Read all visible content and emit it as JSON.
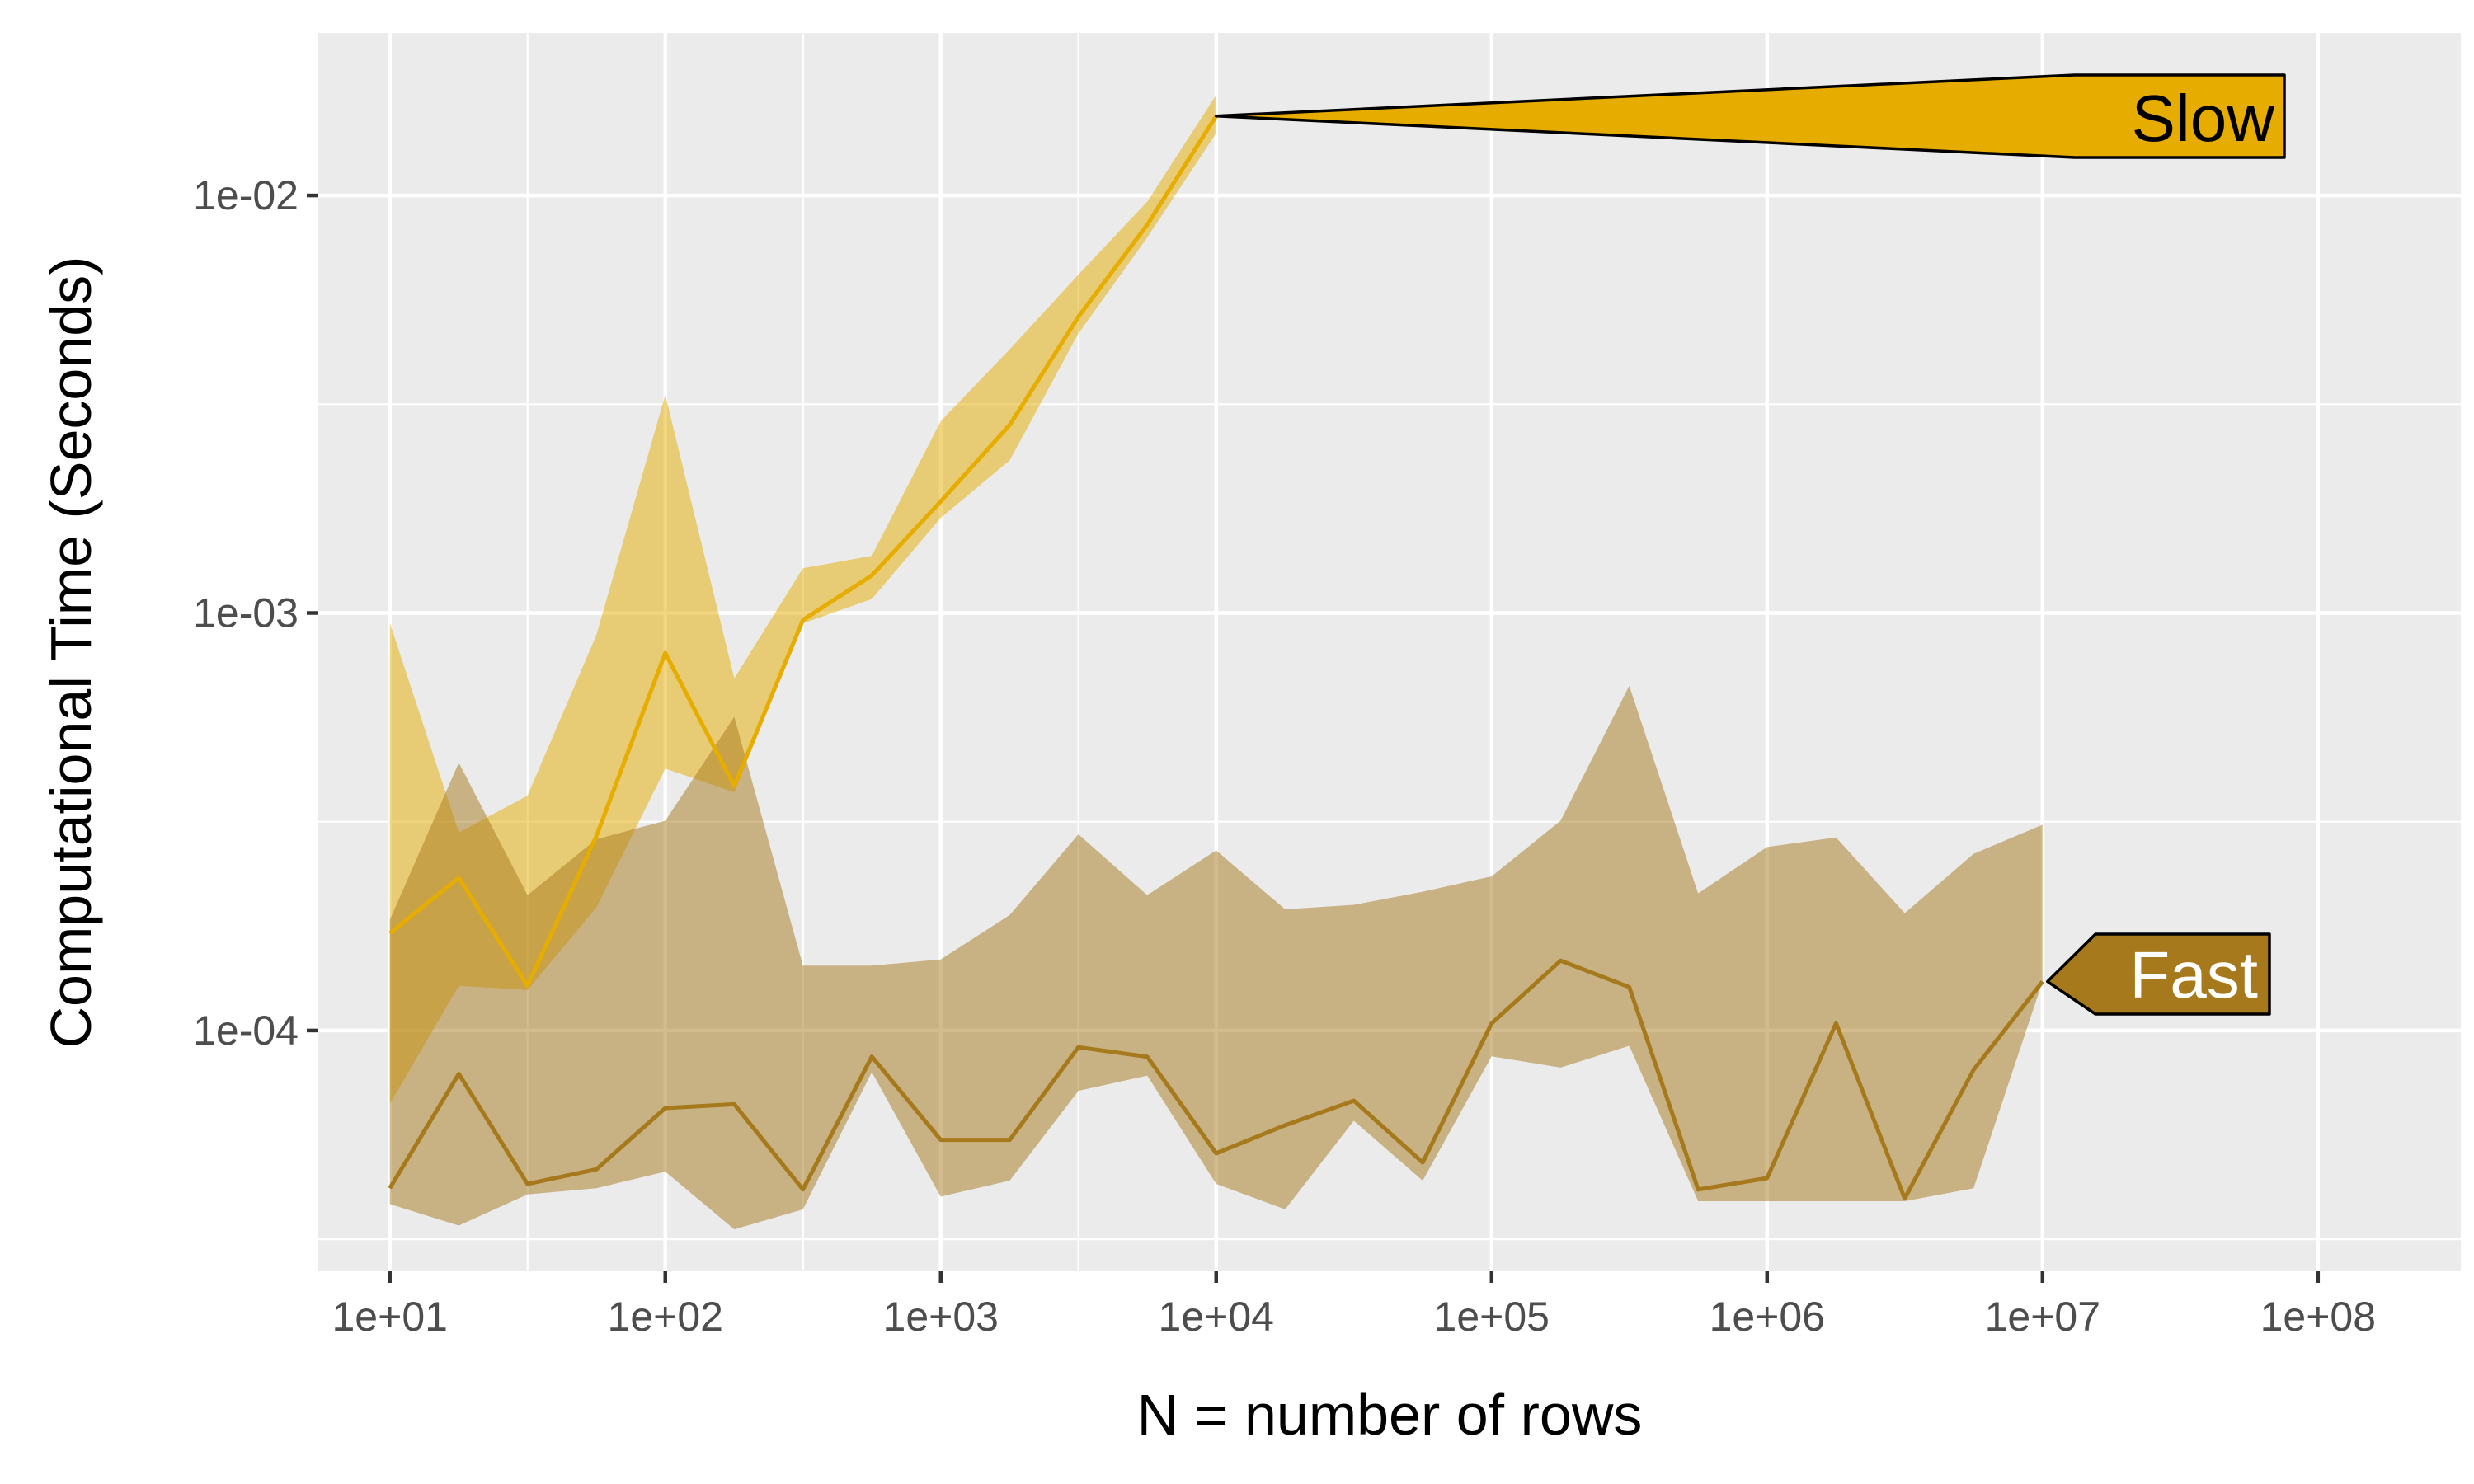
{
  "chart_data": {
    "type": "line",
    "xlabel": "N = number of rows",
    "ylabel": "Computational Time (Seconds)",
    "x_scale": "log10",
    "y_scale": "log10",
    "xlim": [
      5.5,
      330000000
    ],
    "ylim": [
      2.65e-05,
      0.0245
    ],
    "x_ticks": [
      10,
      100,
      1000,
      10000,
      100000,
      1000000,
      10000000,
      100000000
    ],
    "x_tick_labels": [
      "1e+01",
      "1e+02",
      "1e+03",
      "1e+04",
      "1e+05",
      "1e+06",
      "1e+07",
      "1e+08"
    ],
    "y_ticks": [
      0.0001,
      0.001,
      0.01
    ],
    "y_tick_labels": [
      "1e-04",
      "1e-03",
      "1e-02"
    ],
    "grid": true,
    "background": "#ebebeb",
    "series": [
      {
        "name": "Slow",
        "line_color": "#e6ac00",
        "band_color": "#e6ac00",
        "label_fill": "#e6ac00",
        "label_text_color": "#000000",
        "x": [
          10,
          17.8,
          31.6,
          56.2,
          100,
          178,
          316,
          562,
          1000,
          1780,
          3160,
          5620,
          10000
        ],
        "y": [
          0.000171,
          0.000232,
          0.000128,
          0.000292,
          0.000802,
          0.000385,
          0.000962,
          0.00123,
          0.00185,
          0.00282,
          0.00512,
          0.00851,
          0.0155
        ],
        "ymin": [
          6.67e-05,
          0.000128,
          0.000125,
          0.000197,
          0.000424,
          0.000372,
          0.000944,
          0.00108,
          0.00169,
          0.00232,
          0.00467,
          0.00793,
          0.0141
        ],
        "ymax": [
          0.000946,
          0.000298,
          0.000365,
          0.000885,
          0.00333,
          0.000697,
          0.00128,
          0.00137,
          0.00288,
          0.00428,
          0.00646,
          0.00966,
          0.0174
        ]
      },
      {
        "name": "Fast",
        "line_color": "#a67a1c",
        "band_color": "#a67a1c",
        "label_fill": "#a67a1c",
        "label_text_color": "#ffffff",
        "x": [
          10,
          17.8,
          31.6,
          56.2,
          100,
          178,
          316,
          562,
          1000,
          1780,
          3160,
          5620,
          10000,
          17800,
          31600,
          56200,
          100000,
          178000,
          316000,
          562000,
          1000000,
          1780000,
          3160000,
          5620000,
          10000000
        ],
        "y": [
          4.19e-05,
          7.87e-05,
          4.29e-05,
          4.65e-05,
          6.52e-05,
          6.66e-05,
          4.16e-05,
          8.66e-05,
          5.47e-05,
          5.47e-05,
          9.12e-05,
          8.65e-05,
          5.08e-05,
          5.93e-05,
          6.79e-05,
          4.83e-05,
          0.000104,
          0.000147,
          0.000127,
          4.16e-05,
          4.43e-05,
          0.000104,
          3.96e-05,
          8.05e-05,
          0.000131
        ],
        "ymin": [
          3.84e-05,
          3.41e-05,
          4.05e-05,
          4.19e-05,
          4.59e-05,
          3.34e-05,
          3.73e-05,
          7.95e-05,
          4e-05,
          4.37e-05,
          7.17e-05,
          7.8e-05,
          4.29e-05,
          3.73e-05,
          6.08e-05,
          4.37e-05,
          8.67e-05,
          8.15e-05,
          9.19e-05,
          3.9e-05,
          3.9e-05,
          3.9e-05,
          3.9e-05,
          4.19e-05,
          0.000131
        ],
        "ymax": [
          0.000184,
          0.000438,
          0.000211,
          0.000287,
          0.000318,
          0.000564,
          0.000143,
          0.000143,
          0.000148,
          0.000189,
          0.000295,
          0.000211,
          0.00027,
          0.000195,
          0.0002,
          0.000215,
          0.000234,
          0.000318,
          0.000669,
          0.000213,
          0.000275,
          0.00029,
          0.000191,
          0.000265,
          0.000311
        ]
      }
    ]
  }
}
